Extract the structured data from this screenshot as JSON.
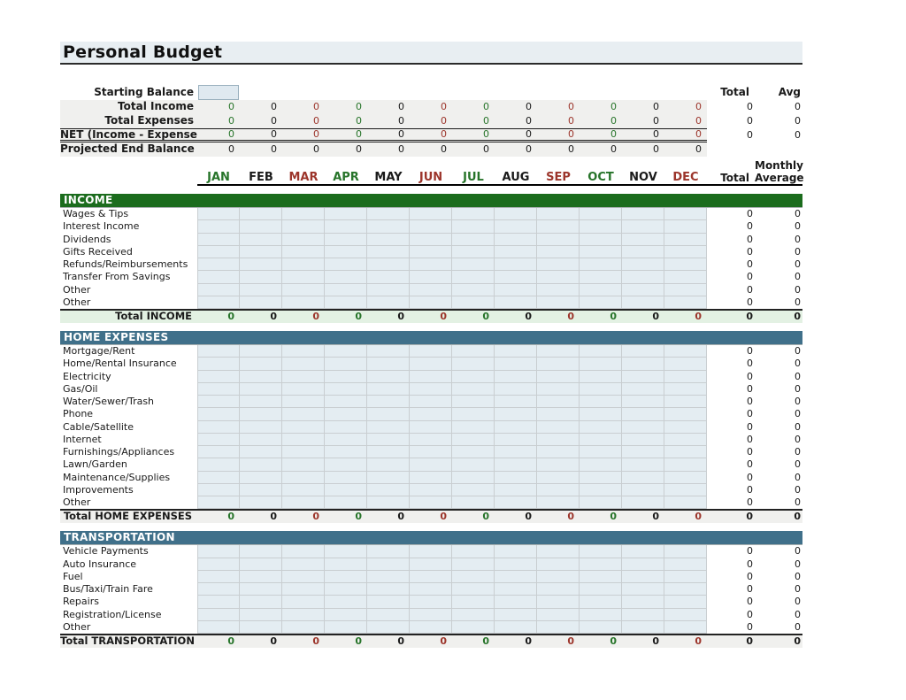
{
  "title": "Personal Budget",
  "colors": {
    "value_cycle": [
      "#27742a",
      "#1a1a1a",
      "#9c352b"
    ],
    "income_header_bg": "#1b6c1d",
    "expense_header_bg": "#40708a",
    "income_total_bg": "#e3f1e3",
    "gray_total_bg": "#f0f0ee",
    "cell_bg": "#e4edf2",
    "title_bg": "#e8eef2"
  },
  "months": [
    "JAN",
    "FEB",
    "MAR",
    "APR",
    "MAY",
    "JUN",
    "JUL",
    "AUG",
    "SEP",
    "OCT",
    "NOV",
    "DEC"
  ],
  "month_header": {
    "monthly": "Monthly",
    "total": "Total",
    "average": "Average"
  },
  "summary": {
    "starting_balance": {
      "label": "Starting Balance",
      "value": ""
    },
    "total_header": "Total",
    "avg_header": "Avg",
    "rows": [
      {
        "label": "Total Income",
        "values": [
          0,
          0,
          0,
          0,
          0,
          0,
          0,
          0,
          0,
          0,
          0,
          0
        ],
        "total": 0,
        "avg": 0,
        "colored": true,
        "style": ""
      },
      {
        "label": "Total Expenses",
        "values": [
          0,
          0,
          0,
          0,
          0,
          0,
          0,
          0,
          0,
          0,
          0,
          0
        ],
        "total": 0,
        "avg": 0,
        "colored": true,
        "style": ""
      },
      {
        "label": "NET (Income - Expenses)",
        "values": [
          0,
          0,
          0,
          0,
          0,
          0,
          0,
          0,
          0,
          0,
          0,
          0
        ],
        "total": 0,
        "avg": 0,
        "colored": true,
        "style": "net"
      },
      {
        "label": "Projected End Balance",
        "values": [
          0,
          0,
          0,
          0,
          0,
          0,
          0,
          0,
          0,
          0,
          0,
          0
        ],
        "colored": false,
        "style": ""
      }
    ]
  },
  "sections": [
    {
      "title": "INCOME",
      "theme": "income",
      "rows": [
        {
          "label": "Wages & Tips",
          "total": 0,
          "avg": 0
        },
        {
          "label": "Interest Income",
          "total": 0,
          "avg": 0
        },
        {
          "label": "Dividends",
          "total": 0,
          "avg": 0
        },
        {
          "label": "Gifts Received",
          "total": 0,
          "avg": 0
        },
        {
          "label": "Refunds/Reimbursements",
          "total": 0,
          "avg": 0
        },
        {
          "label": "Transfer From Savings",
          "total": 0,
          "avg": 0
        },
        {
          "label": "Other",
          "total": 0,
          "avg": 0
        },
        {
          "label": "Other",
          "total": 0,
          "avg": 0
        }
      ],
      "total_row": {
        "label": "Total INCOME",
        "values": [
          0,
          0,
          0,
          0,
          0,
          0,
          0,
          0,
          0,
          0,
          0,
          0
        ],
        "total": 0,
        "avg": 0
      }
    },
    {
      "title": "HOME EXPENSES",
      "theme": "expense",
      "rows": [
        {
          "label": "Mortgage/Rent",
          "total": 0,
          "avg": 0
        },
        {
          "label": "Home/Rental Insurance",
          "total": 0,
          "avg": 0
        },
        {
          "label": "Electricity",
          "total": 0,
          "avg": 0
        },
        {
          "label": "Gas/Oil",
          "total": 0,
          "avg": 0
        },
        {
          "label": "Water/Sewer/Trash",
          "total": 0,
          "avg": 0
        },
        {
          "label": "Phone",
          "total": 0,
          "avg": 0
        },
        {
          "label": "Cable/Satellite",
          "total": 0,
          "avg": 0
        },
        {
          "label": "Internet",
          "total": 0,
          "avg": 0
        },
        {
          "label": "Furnishings/Appliances",
          "total": 0,
          "avg": 0
        },
        {
          "label": "Lawn/Garden",
          "total": 0,
          "avg": 0
        },
        {
          "label": "Maintenance/Supplies",
          "total": 0,
          "avg": 0
        },
        {
          "label": "Improvements",
          "total": 0,
          "avg": 0
        },
        {
          "label": "Other",
          "total": 0,
          "avg": 0
        }
      ],
      "total_row": {
        "label": "Total HOME EXPENSES",
        "values": [
          0,
          0,
          0,
          0,
          0,
          0,
          0,
          0,
          0,
          0,
          0,
          0
        ],
        "total": 0,
        "avg": 0
      }
    },
    {
      "title": "TRANSPORTATION",
      "theme": "expense",
      "rows": [
        {
          "label": "Vehicle Payments",
          "total": 0,
          "avg": 0
        },
        {
          "label": "Auto Insurance",
          "total": 0,
          "avg": 0
        },
        {
          "label": "Fuel",
          "total": 0,
          "avg": 0
        },
        {
          "label": "Bus/Taxi/Train Fare",
          "total": 0,
          "avg": 0
        },
        {
          "label": "Repairs",
          "total": 0,
          "avg": 0
        },
        {
          "label": "Registration/License",
          "total": 0,
          "avg": 0
        },
        {
          "label": "Other",
          "total": 0,
          "avg": 0
        }
      ],
      "total_row": {
        "label": "Total TRANSPORTATION",
        "values": [
          0,
          0,
          0,
          0,
          0,
          0,
          0,
          0,
          0,
          0,
          0,
          0
        ],
        "total": 0,
        "avg": 0
      }
    }
  ]
}
